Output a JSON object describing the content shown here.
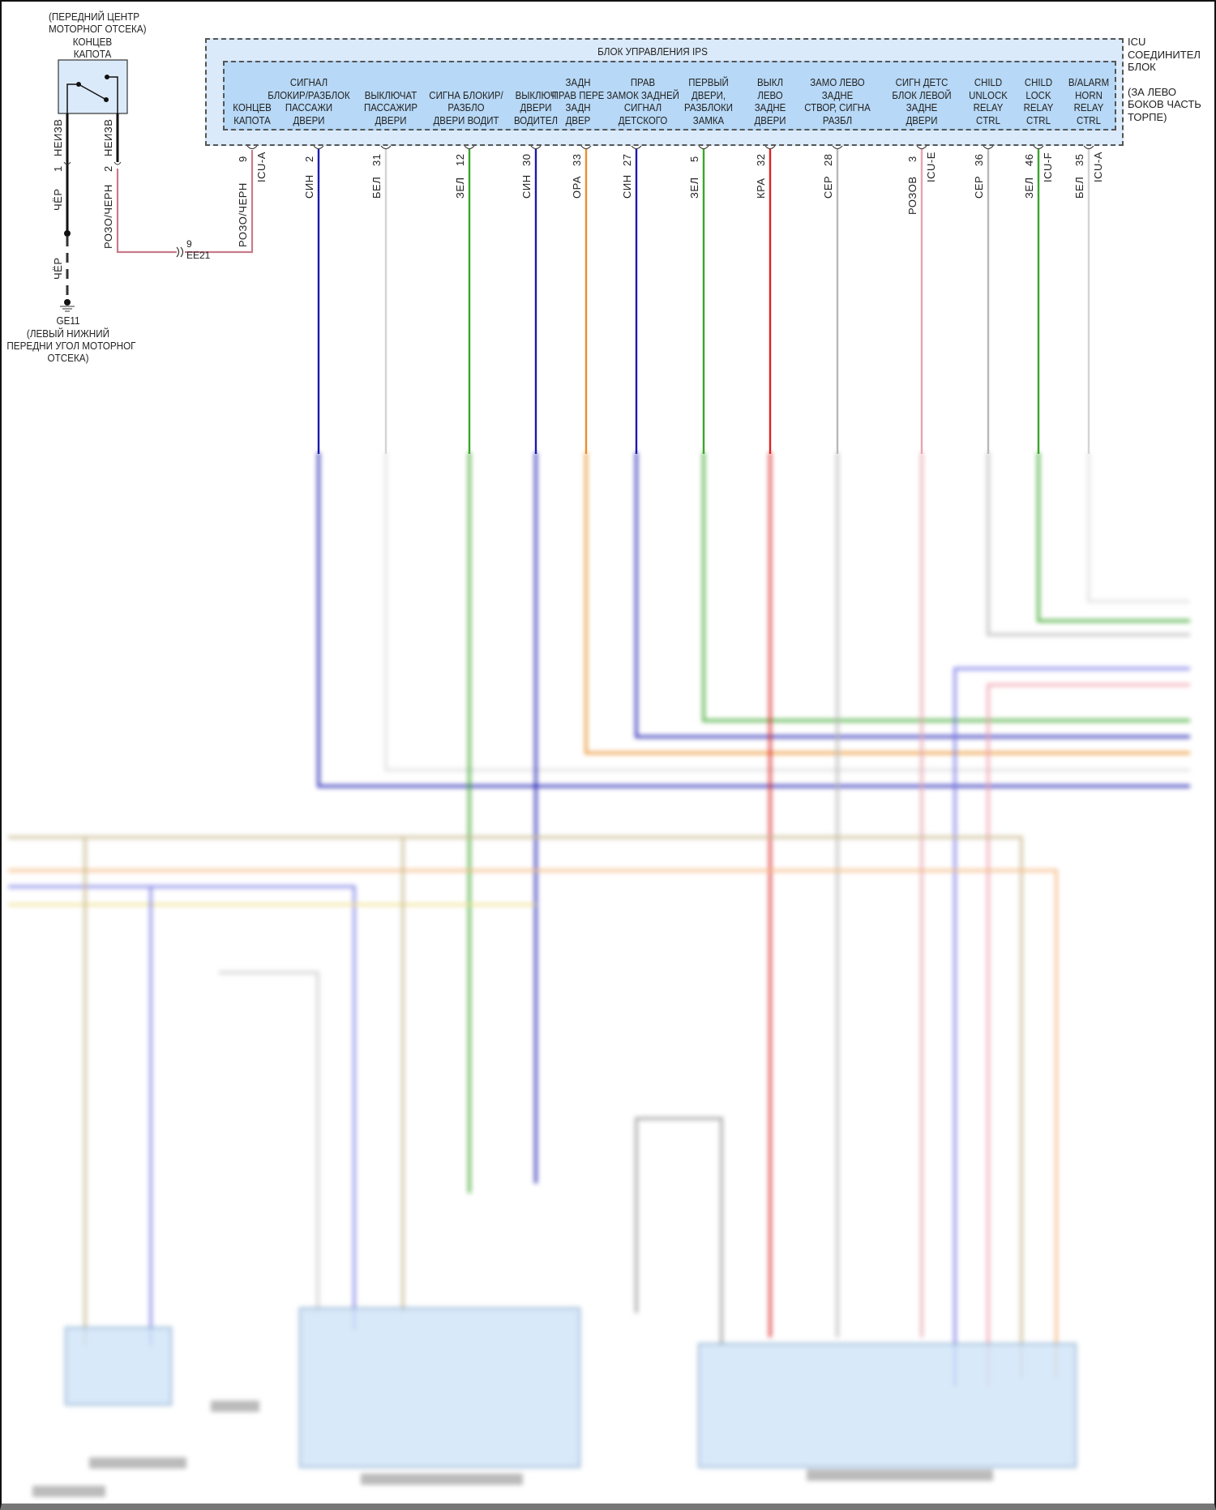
{
  "hood_switch": {
    "title_lines": [
      "(ПЕРЕДНИЙ ЦЕНТР",
      "МОТОРНОГ ОТСЕКА)",
      "КОНЦЕВ",
      "КАПОТА"
    ],
    "left_pin": {
      "num": "1",
      "type": "НЕИЗВ",
      "wire": "ЧЁР"
    },
    "right_pin": {
      "num": "2",
      "type": "НЕИЗВ",
      "wire": "РОЗО/ЧЕРН"
    },
    "ground_wire": "ЧЁР",
    "ground": {
      "id": "GE11",
      "lines": [
        "(ЛЕВЫЙ НИЖНИЙ",
        "ПЕРЕДНИ УГОЛ МОТОРНОГ",
        "ОТСЕКА)"
      ]
    },
    "connector": {
      "pin": "9",
      "id": "EE21"
    }
  },
  "ips_unit": {
    "title": "БЛОК УПРАВЛЕНИЯ IPS",
    "side_label": [
      "ICU СОЕДИНИТЕЛ",
      "БЛОК",
      "",
      "(ЗА ЛЕВО",
      "БОКОВ ЧАСТЬ",
      "ТОРПЕ)"
    ],
    "pins": [
      {
        "num": "9",
        "wire": "РОЗО/ЧЕРН",
        "conn": "ICU-A",
        "color": "#c87a8c",
        "label": [
          "КОНЦЕВ",
          "КАПОТА"
        ]
      },
      {
        "num": "2",
        "wire": "СИН",
        "conn": "",
        "color": "#1a1ab0",
        "label": [
          "СИГНАЛ",
          "БЛОКИР/РАЗБЛОК",
          "ПАССАЖИ",
          "ДВЕРИ"
        ]
      },
      {
        "num": "31",
        "wire": "БЕЛ",
        "conn": "",
        "color": "#d4d4d4",
        "label": [
          "ВЫКЛЮЧАТ",
          "ПАССАЖИР",
          "ДВЕРИ"
        ]
      },
      {
        "num": "12",
        "wire": "ЗЕЛ",
        "conn": "",
        "color": "#3aa52a",
        "label": [
          "СИГНА БЛОКИР/",
          "РАЗБЛО",
          "ДВЕРИ ВОДИТ"
        ]
      },
      {
        "num": "30",
        "wire": "СИН",
        "conn": "",
        "color": "#1a1ab0",
        "label": [
          "ВЫКЛЮЧ",
          "ДВЕРИ",
          "ВОДИТЕЛ"
        ]
      },
      {
        "num": "33",
        "wire": "ОРА",
        "conn": "",
        "color": "#e8902a",
        "label": [
          "ЗАДН",
          "ПРАВ ПЕРЕ",
          "ЗАДН",
          "ДВЕР"
        ]
      },
      {
        "num": "27",
        "wire": "СИН",
        "conn": "",
        "color": "#1a1ab0",
        "label": [
          "ПРАВ",
          "ЗАМОК ЗАДНЕЙ",
          "СИГНАЛ",
          "ДЕТСКОГО"
        ]
      },
      {
        "num": "5",
        "wire": "ЗЕЛ",
        "conn": "",
        "color": "#3aa52a",
        "label": [
          "ПЕРВЫЙ",
          "ДВЕРИ,",
          "РАЗБЛОКИ",
          "ЗАМКА"
        ]
      },
      {
        "num": "32",
        "wire": "КРА",
        "conn": "",
        "color": "#dd2222",
        "label": [
          "ВЫКЛ",
          "ЛЕВО",
          "ЗАДНЕ",
          "ДВЕРИ"
        ]
      },
      {
        "num": "28",
        "wire": "СЕР",
        "conn": "",
        "color": "#b8b8b8",
        "label": [
          "ЗАМО ЛЕВО",
          "ЗАДНЕ",
          "СТВОР, СИГНА",
          "РАЗБЛ"
        ]
      },
      {
        "num": "3",
        "wire": "РОЗОВ",
        "conn": "ICU-E",
        "color": "#e8a4b0",
        "label": [
          "СИГН ДЕТС",
          "БЛОК ЛЕВОЙ",
          "ЗАДНЕ",
          "ДВЕРИ"
        ]
      },
      {
        "num": "36",
        "wire": "СЕР",
        "conn": "",
        "color": "#b8b8b8",
        "label": [
          "CHILD",
          "UNLOCK",
          "RELAY",
          "CTRL"
        ]
      },
      {
        "num": "46",
        "wire": "ЗЕЛ",
        "conn": "ICU-F",
        "color": "#3aa52a",
        "label": [
          "CHILD",
          "LOCK",
          "RELAY",
          "CTRL"
        ]
      },
      {
        "num": "35",
        "wire": "БЕЛ",
        "conn": "ICU-A",
        "color": "#d4d4d4",
        "label": [
          "B/ALARM",
          "HORN",
          "RELAY",
          "CTRL"
        ]
      }
    ]
  },
  "colors": {
    "block_outer": "#dbeafa",
    "block_inner": "#b7d8f6",
    "component_box": "#cfe4f8"
  }
}
